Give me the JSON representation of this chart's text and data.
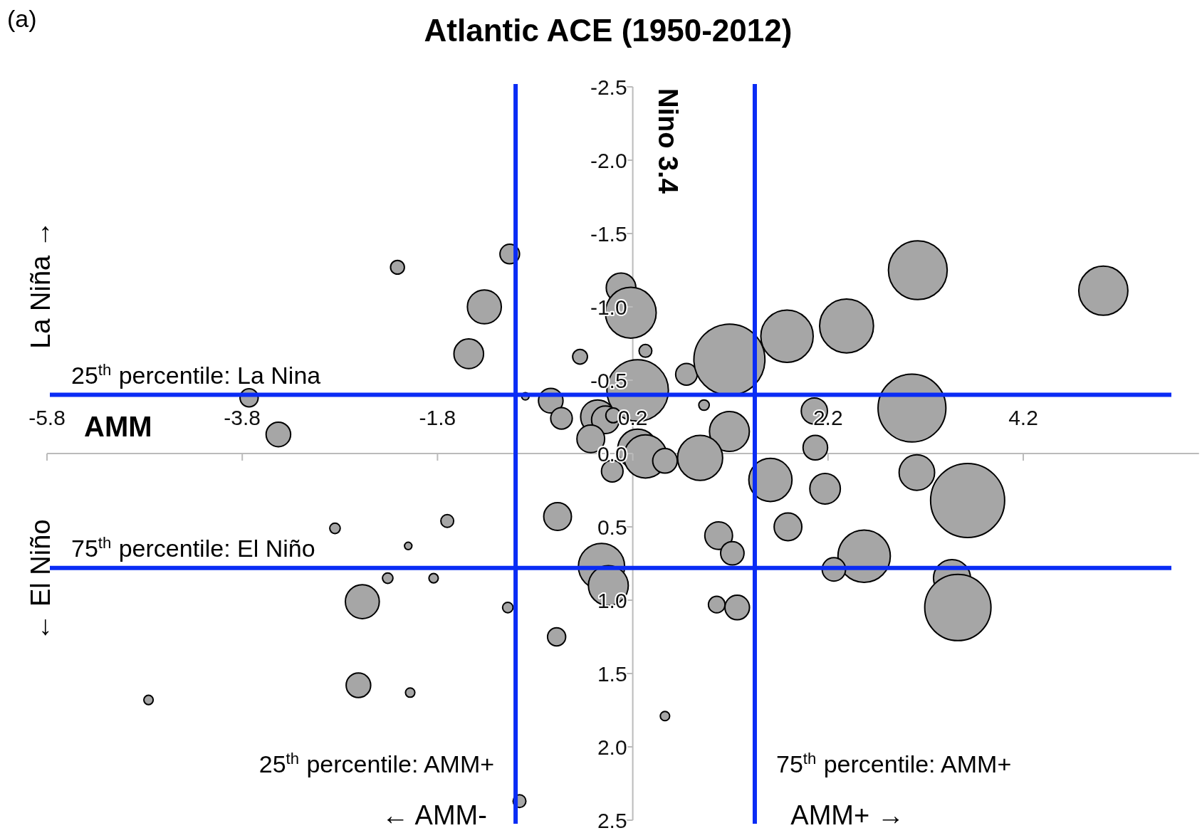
{
  "chart_data": {
    "type": "bubble",
    "title": "Atlantic ACE (1950-2012)",
    "xlabel": "AMM",
    "ylabel": "Nino 3.4",
    "annotations": [
      "(a)",
      "La Niña →",
      "← El Niño",
      "← AMM-",
      "AMM+ →"
    ],
    "xlim": [
      -5.8,
      6.0
    ],
    "xticks": [
      -5.8,
      -3.8,
      -1.8,
      0.2,
      2.2,
      4.2
    ],
    "ylim": [
      2.5,
      -2.5
    ],
    "yticks": [
      {
        "value": -2.5,
        "label": "-2.5"
      },
      {
        "value": -2.0,
        "label": "-2.0"
      },
      {
        "value": -1.5,
        "label": "-1.5"
      },
      {
        "value": -1.0,
        "label": "-1.0"
      },
      {
        "value": -0.5,
        "label": "-0.5"
      },
      {
        "value": 0,
        "label": "0.0"
      },
      {
        "value": 0.5,
        "label": "0.5"
      },
      {
        "value": 1.0,
        "label": "1.0"
      },
      {
        "value": 1.5,
        "label": "1.5"
      },
      {
        "value": 2.0,
        "label": "2.0"
      },
      {
        "value": 2.5,
        "label": "2.5"
      }
    ],
    "grid": false,
    "marker": "circle",
    "ref_lines": [
      {
        "axis": "x",
        "value": -1.0,
        "label": "25$^{th}$ percentile: AMM+",
        "color": "#0a2cf5"
      },
      {
        "axis": "x",
        "value": 1.45,
        "label": "75$^{th}$ percentile: AMM+",
        "color": "#0a2cf5"
      },
      {
        "axis": "y",
        "value": -0.4,
        "label": "25$^{th}$ percentile: La Nina",
        "color": "#0a2cf5"
      },
      {
        "axis": "y",
        "value": 0.78,
        "label": "75$^{th}$ percentile: El Niño",
        "color": "#0a2cf5"
      }
    ],
    "series": [
      {
        "color": "#a6a6a6",
        "x": [
          -1.06,
          -2.21,
          -1.32,
          -1.48,
          -3.73,
          -3.43,
          0.08,
          0.18,
          0.33,
          -0.34,
          0.75,
          1.19,
          0.25,
          1.78,
          2.39,
          3.12,
          5.02,
          3.06,
          2.06,
          -0.64,
          -0.53,
          -0.9,
          -0.16,
          -0.08,
          0.0,
          0.93,
          1.19,
          -0.23,
          0.25,
          0.33,
          0.53,
          0.89,
          -0.01,
          1.61,
          2.07,
          3.11,
          3.63,
          2.17,
          1.79,
          1.08,
          1.22,
          -0.57,
          2.57,
          2.26,
          3.47,
          3.53,
          -0.12,
          -0.05,
          1.06,
          1.27,
          -0.58,
          -1.08,
          -2.57,
          -1.7,
          -2.85,
          -2.1,
          -2.31,
          -1.84,
          -2.61,
          -2.08,
          -4.76,
          0.53,
          -0.96
        ],
        "values": [
          -1.36,
          -1.27,
          -1.0,
          -0.68,
          -0.38,
          -0.13,
          -1.13,
          -0.96,
          -0.7,
          -0.66,
          -0.54,
          -0.64,
          -0.43,
          -0.8,
          -0.87,
          -1.25,
          -1.11,
          -0.31,
          -0.29,
          -0.36,
          -0.24,
          -0.39,
          -0.25,
          -0.23,
          -0.26,
          -0.33,
          -0.15,
          -0.1,
          -0.03,
          0.02,
          0.05,
          0.03,
          0.12,
          0.18,
          -0.04,
          0.13,
          0.32,
          0.24,
          0.5,
          0.56,
          0.68,
          0.43,
          0.7,
          0.79,
          0.85,
          1.05,
          0.77,
          0.9,
          1.03,
          1.05,
          1.25,
          1.05,
          1.01,
          0.46,
          0.51,
          0.63,
          0.85,
          0.85,
          1.58,
          1.63,
          1.68,
          1.79,
          2.37
        ],
        "sizes": [
          0.07,
          0.035,
          0.21,
          0.16,
          0.06,
          0.11,
          0.16,
          0.47,
          0.03,
          0.04,
          0.085,
          0.92,
          0.69,
          0.5,
          0.53,
          0.63,
          0.44,
          0.84,
          0.125,
          0.11,
          0.085,
          0.01,
          0.21,
          0.14,
          0.04,
          0.02,
          0.29,
          0.14,
          0.29,
          0.34,
          0.11,
          0.37,
          0.085,
          0.34,
          0.11,
          0.23,
          1,
          0.17,
          0.14,
          0.14,
          0.1,
          0.14,
          0.5,
          0.1,
          0.25,
          0.8,
          0.39,
          0.29,
          0.05,
          0.11,
          0.06,
          0.02,
          0.21,
          0.03,
          0.02,
          0.01,
          0.02,
          0.016,
          0.11,
          0.016,
          0.016,
          0.016,
          0.03
        ]
      }
    ]
  }
}
